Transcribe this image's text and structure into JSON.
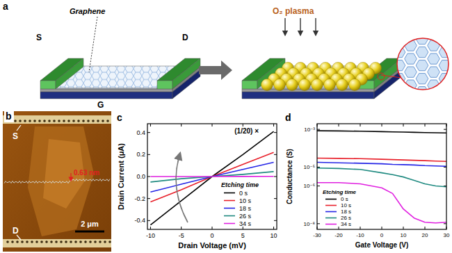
{
  "panel_labels": [
    "a",
    "b",
    "c",
    "d"
  ],
  "schematic": {
    "graphene_label": "Graphene",
    "source": "S",
    "drain": "D",
    "gate": "G",
    "plasma": "O₂ plasma"
  },
  "afm": {
    "source": "S",
    "drain": "D",
    "height": "0.63 nm",
    "scale_bar": "2 μm"
  },
  "chart_data": [
    {
      "type": "line",
      "xlabel": "Drain Voltage (mV)",
      "ylabel": "Drain Current (μA)",
      "annotations": [
        "(1/20) ×"
      ],
      "legend_title": "Etching time",
      "legend": "lower right",
      "x": [
        -10,
        -5,
        0,
        5,
        10
      ],
      "xlim": [
        -10.5,
        10.5
      ],
      "xticks": [
        -10,
        -5,
        0,
        5,
        10
      ],
      "ylim": [
        -0.48,
        0.48
      ],
      "yticks": [
        -0.4,
        -0.2,
        {
          "value": 0,
          "label": "0.0"
        },
        0.2,
        0.4
      ],
      "series": [
        {
          "name": "0 s",
          "color": "#000000",
          "values": [
            -0.44,
            -0.22,
            0,
            0.2,
            0.41
          ]
        },
        {
          "name": "10 s",
          "color": "#e8202a",
          "values": [
            -0.23,
            -0.12,
            0,
            0.11,
            0.22
          ]
        },
        {
          "name": "18 s",
          "color": "#2424e6",
          "values": [
            -0.14,
            -0.07,
            0,
            0.065,
            0.13
          ]
        },
        {
          "name": "26 s",
          "color": "#1f8a80",
          "values": [
            -0.05,
            -0.02,
            0,
            0.02,
            0.045
          ]
        },
        {
          "name": "34 s",
          "color": "#e020e0",
          "values": [
            0,
            0,
            0,
            0.001,
            0.002
          ]
        }
      ]
    },
    {
      "type": "line",
      "xlabel": "Gate Voltage (V)",
      "ylabel": "Conductance (S)",
      "legend_title": "Etching time",
      "legend": "lower left",
      "log": "y",
      "x": [
        -30,
        -20,
        -10,
        0,
        5,
        10,
        15,
        20,
        25,
        30
      ],
      "xlim": [
        -30,
        30
      ],
      "xticks": [
        -30,
        -20,
        -10,
        0,
        10,
        20,
        30
      ],
      "ylim": [
        5e-09,
        0.002
      ],
      "yticks": [
        {
          "value": 0.001,
          "label": "10⁻³"
        },
        {
          "value": 1e-05,
          "label": "10⁻⁵"
        },
        {
          "value": 1e-06,
          "label": "10⁻⁶"
        },
        {
          "value": 1e-08,
          "label": "10⁻⁸"
        }
      ],
      "series": [
        {
          "name": "0 s",
          "color": "#000000",
          "values": [
            0.00085,
            0.00083,
            0.0008,
            0.00076,
            0.00074,
            0.00072,
            0.0007,
            0.00068,
            0.00066,
            0.00065
          ]
        },
        {
          "name": "10 s",
          "color": "#e8202a",
          "values": [
            3e-05,
            2.9e-05,
            2.8e-05,
            2.6e-05,
            2.5e-05,
            2.4e-05,
            2.3e-05,
            2.2e-05,
            2.1e-05,
            2e-05
          ]
        },
        {
          "name": "18 s",
          "color": "#2424e6",
          "values": [
            1.8e-05,
            1.7e-05,
            1.6e-05,
            1.5e-05,
            1.4e-05,
            1.35e-05,
            1.3e-05,
            1.2e-05,
            1.15e-05,
            1.1e-05
          ]
        },
        {
          "name": "26 s",
          "color": "#1f8a80",
          "values": [
            9e-06,
            8.5e-06,
            7.5e-06,
            5e-06,
            4e-06,
            3e-06,
            2e-06,
            1.3e-06,
            1e-06,
            9e-07
          ]
        },
        {
          "name": "34 s",
          "color": "#e020e0",
          "values": [
            1.5e-06,
            1.5e-06,
            1.3e-06,
            8e-07,
            4e-07,
            6e-08,
            2e-08,
            1.2e-08,
            1.1e-08,
            1.2e-08
          ]
        }
      ]
    }
  ]
}
